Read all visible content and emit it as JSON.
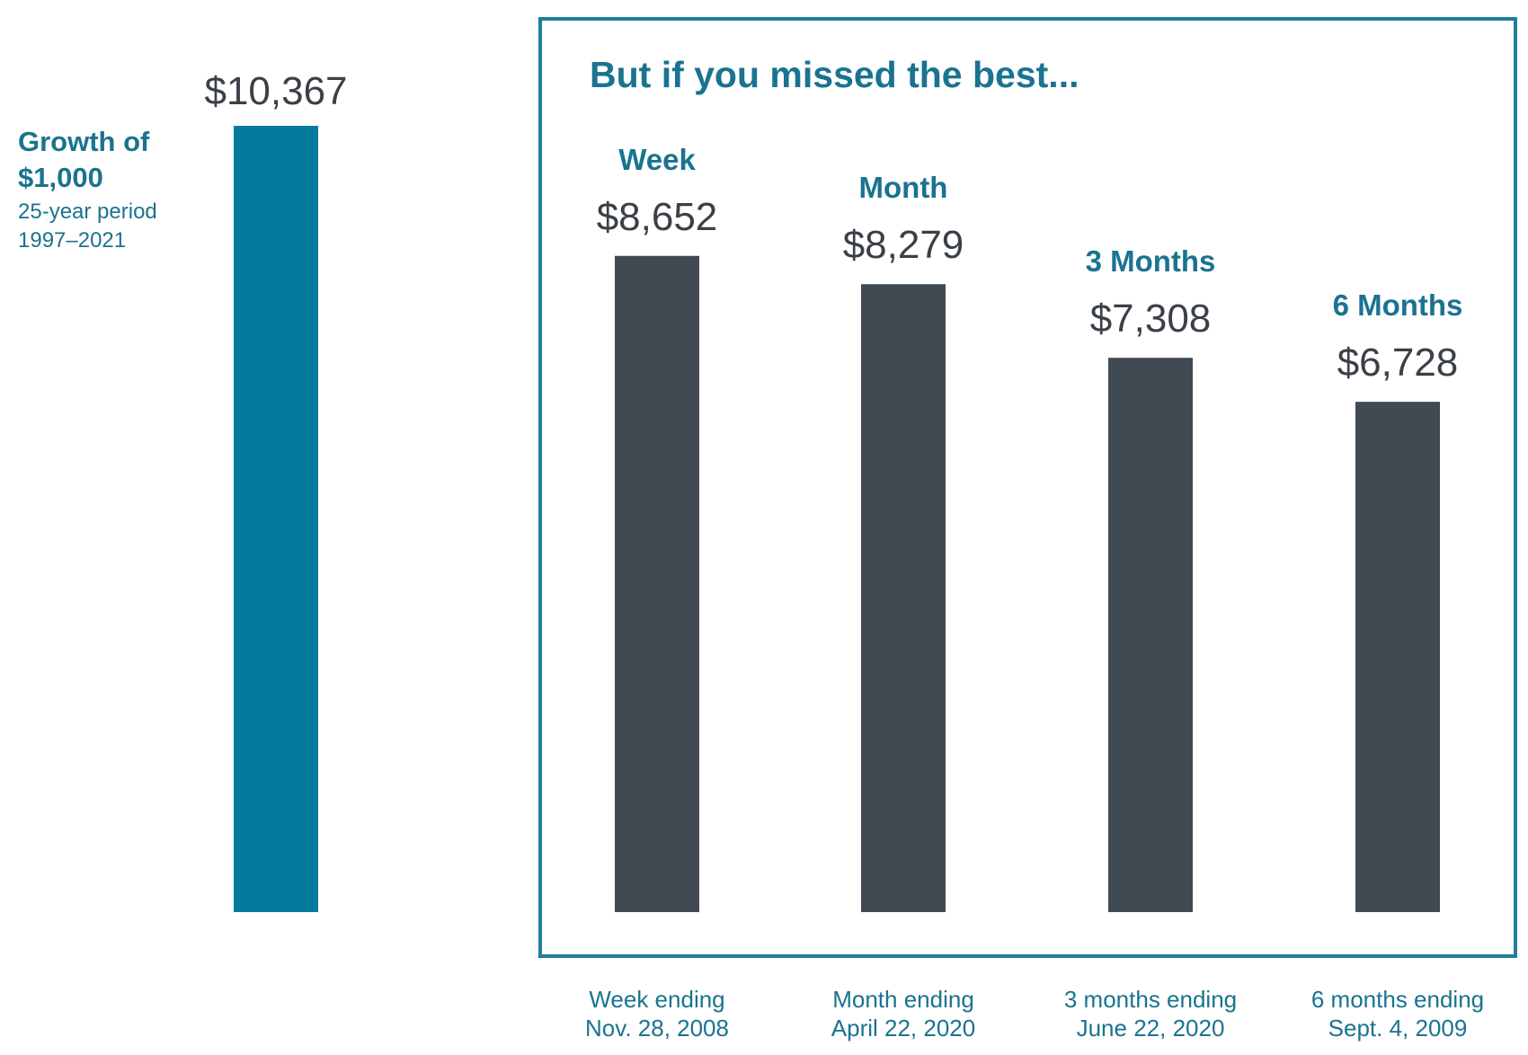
{
  "colors": {
    "baseline_bar": "#047a9c",
    "missed_bar": "#414952",
    "accent_text": "#1a7390",
    "value_text": "#3b4048",
    "frame": "#207e9a",
    "background": "#ffffff"
  },
  "left_panel": {
    "title_line1": "Growth of",
    "title_line2": "$1,000",
    "subtitle_line1": "25-year period",
    "subtitle_line2": "1997–2021"
  },
  "chart_data": {
    "type": "bar",
    "title": "But if you missed the best...",
    "ylim": [
      0,
      10367
    ],
    "baseline": {
      "category": "",
      "value": 10367,
      "value_label": "$10,367"
    },
    "categories": [
      "Week",
      "Month",
      "3 Months",
      "6 Months"
    ],
    "values": [
      8652,
      8279,
      7308,
      6728
    ],
    "value_labels": [
      "$8,652",
      "$8,279",
      "$7,308",
      "$6,728"
    ],
    "date_labels": [
      [
        "Week ending",
        "Nov. 28, 2008"
      ],
      [
        "Month ending",
        "April 22, 2020"
      ],
      [
        "3 months ending",
        "June 22, 2020"
      ],
      [
        "6 months ending",
        "Sept. 4, 2009"
      ]
    ],
    "grid": false,
    "legend": "none"
  }
}
